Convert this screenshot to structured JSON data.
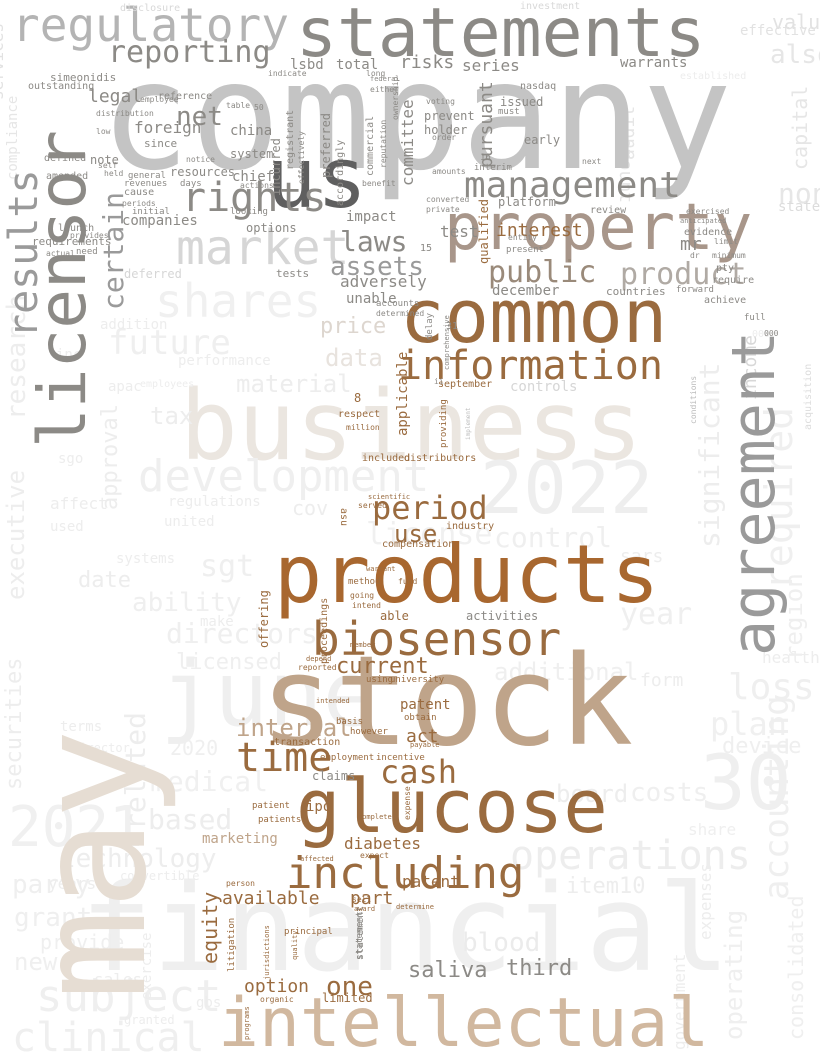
{
  "palette": {
    "gray_dark": "#5f5f5f",
    "gray": "#8c8a86",
    "gray_light": "#c4c4c4",
    "pale": "#ebebeb",
    "beige": "#e6ddd3",
    "tan": "#bfa48a",
    "brown": "#9a6b3f",
    "copper": "#a8672f"
  },
  "words": {
    "company": "company",
    "stock": "stock",
    "may": "may",
    "financial": "financial",
    "business": "business",
    "products": "products",
    "statements": "statements",
    "common": "common",
    "licensor": "licensor",
    "property": "property",
    "intellectual": "intellectual",
    "glucose": "glucose",
    "agreement": "agreement",
    "us": "us",
    "regulatory": "regulatory",
    "june": "june",
    "y2022": "2022",
    "n30": "30",
    "biosensor": "biosensor",
    "including": "including",
    "information": "information",
    "development": "development",
    "shares": "shares",
    "market": "market",
    "management": "management",
    "y2021": "2021",
    "operations": "operations",
    "results": "results",
    "accounting": "accounting",
    "time": "time",
    "cash": "cash",
    "period": "period",
    "reporting": "reporting",
    "rights": "rights",
    "certain": "certain",
    "future": "future",
    "product": "product",
    "public": "public",
    "laws": "laws",
    "assets": "assets",
    "net": "net",
    "significant": "significant",
    "required": "required",
    "clinical": "clinical",
    "subject": "subject",
    "loss": "loss",
    "plan": "plan",
    "technology": "technology",
    "control": "control",
    "current": "current",
    "use": "use",
    "one": "one",
    "equity": "equity",
    "available": "available",
    "diabetes": "diabetes",
    "internal": "internal",
    "option": "option",
    "data": "data",
    "price": "price",
    "test": "test",
    "interest": "interest",
    "foreign": "foreign",
    "legal": "legal",
    "china": "china",
    "lsbd": "lsbd",
    "total": "total",
    "risks": "risks",
    "series": "series",
    "warrants": "warrants",
    "committee": "committee",
    "pursuant": "pursuant",
    "issued": "issued",
    "december": "december",
    "adversely": "adversely",
    "unable": "unable",
    "impact": "impact",
    "mr": "mr",
    "services": "services",
    "compliance": "compliance",
    "executive": "executive",
    "research": "research",
    "securities": "securities",
    "related": "related",
    "based": "based",
    "party": "party",
    "grant": "grant",
    "provide": "provide",
    "new": "new",
    "medical": "medical",
    "board": "board",
    "costs": "costs",
    "device": "device",
    "consolidated": "consolidated",
    "income": "income",
    "value": "value",
    "capital": "capital",
    "also": "also",
    "non": "non",
    "states": "states",
    "region": "region",
    "form": "form",
    "additional": "additional",
    "year": "year",
    "blood": "blood",
    "saliva": "saliva",
    "third": "third",
    "item10": "item10",
    "share": "share",
    "act": "act",
    "patent": "patent",
    "ipo": "ipo",
    "claims": "claims",
    "part": "part",
    "limited": "limited",
    "marketing": "marketing",
    "y2020": "2020",
    "directors": "directors",
    "sgt": "sgt",
    "licensed": "licensed",
    "ability": "ability",
    "date": "date",
    "approval": "approval",
    "tax": "tax",
    "material": "material",
    "cov": "cov",
    "sars": "sars",
    "license": "license",
    "sales": "sales",
    "exercise": "exercise",
    "years": "years",
    "simeonidis": "simeonidis",
    "outstanding": "outstanding",
    "reference": "reference",
    "employee": "employee",
    "since": "since",
    "note": "note",
    "defined": "defined",
    "amended": "amended",
    "requirements": "requirements",
    "launch": "launch",
    "need": "need",
    "cause": "cause",
    "initial": "initial",
    "resources": "resources",
    "system": "system",
    "chief": "chief",
    "companies": "companies",
    "options": "options",
    "deferred": "deferred",
    "tests": "tests",
    "incurred": "incurred",
    "preferred": "preferred",
    "registrant": "registrant",
    "accordingly": "accordingly",
    "commercial": "commercial",
    "reputation": "reputation",
    "holder": "holder",
    "prevent": "prevent",
    "must": "must",
    "early": "early",
    "qualified": "qualified",
    "platform": "platform",
    "review": "review",
    "evidence": "evidence",
    "exercised": "exercised",
    "anticipated": "anticipated",
    "limit": "limit",
    "pty": "pty",
    "require": "require",
    "achieve": "achieve",
    "countries": "countries",
    "forward": "forward",
    "full": "full",
    "accounts": "accounts",
    "determined": "determined",
    "delay": "delay",
    "n15": "15",
    "n16": "16",
    "n31": "31",
    "n8": "8",
    "applicable": "applicable",
    "respect": "respect",
    "million": "million",
    "september": "september",
    "controls": "controls",
    "providing": "providing",
    "included": "included",
    "distributors": "distributors",
    "scientific": "scientific",
    "served": "served",
    "asu": "asu",
    "industry": "industry",
    "compensation": "compensation",
    "able": "able",
    "activities": "activities",
    "offering": "offering",
    "proceedings": "proceedings",
    "method": "method",
    "going": "going",
    "intend": "intend",
    "fund": "fund",
    "warrant": "warrant",
    "member": "member",
    "using": "using",
    "university": "university",
    "reported": "reported",
    "depend": "depend",
    "intended": "intended",
    "basis": "basis",
    "however": "however",
    "obtain": "obtain",
    "payable": "payable",
    "transaction": "transaction",
    "employment": "employment",
    "incentive": "incentive",
    "expense": "expense",
    "patient": "patient",
    "patients": "patients",
    "complete": "complete",
    "affected": "affected",
    "expect": "expect",
    "sell": "sell",
    "award": "award",
    "determine": "determine",
    "person": "person",
    "litigation": "litigation",
    "principal": "principal",
    "quality": "quality",
    "jurisdictions": "jurisdictions",
    "organic": "organic",
    "programs": "programs",
    "gbs": "gbs",
    "statement": "statement",
    "health": "health",
    "acquisition": "acquisition",
    "conditions": "conditions",
    "apac": "apac",
    "performance": "performance",
    "regulations": "regulations",
    "united": "united",
    "affect": "affect",
    "used": "used",
    "revenues": "revenues",
    "general": "general",
    "days": "days",
    "notice": "notice",
    "looking": "looking",
    "actions": "actions",
    "benefit": "benefit",
    "converted": "converted",
    "private": "private",
    "entity": "entity",
    "interim": "interim",
    "voting": "voting",
    "order": "order",
    "either": "either",
    "present": "present",
    "minimum": "minimum",
    "next": "next",
    "amounts": "amounts",
    "nasdaq": "nasdaq",
    "investment": "investment",
    "disclosure": "disclosure",
    "ownership": "ownership",
    "table": "table",
    "n50": "50",
    "indicate": "indicate",
    "long": "long",
    "federal": "federal",
    "director": "director",
    "distribution": "distribution",
    "held": "held",
    "self": "self",
    "actual": "actual",
    "periods": "periods",
    "provides": "provides",
    "comprehensive": "comprehensive",
    "effectively": "effectively",
    "dr": "dr",
    "terms": "terms",
    "systems": "systems",
    "make": "make",
    "established": "established",
    "effective": "effective",
    "amount": "amount",
    "audit": "audit",
    "n000": "000",
    "ii": "ii",
    "low": "low",
    "employees": "employees",
    "implement": "implement",
    "addition": "addition",
    "inc": "inc",
    "convertible": "convertible",
    "granted": "granted",
    "government": "government",
    "operating": "operating",
    "expenses": "expenses",
    "sgo": "sgo"
  }
}
